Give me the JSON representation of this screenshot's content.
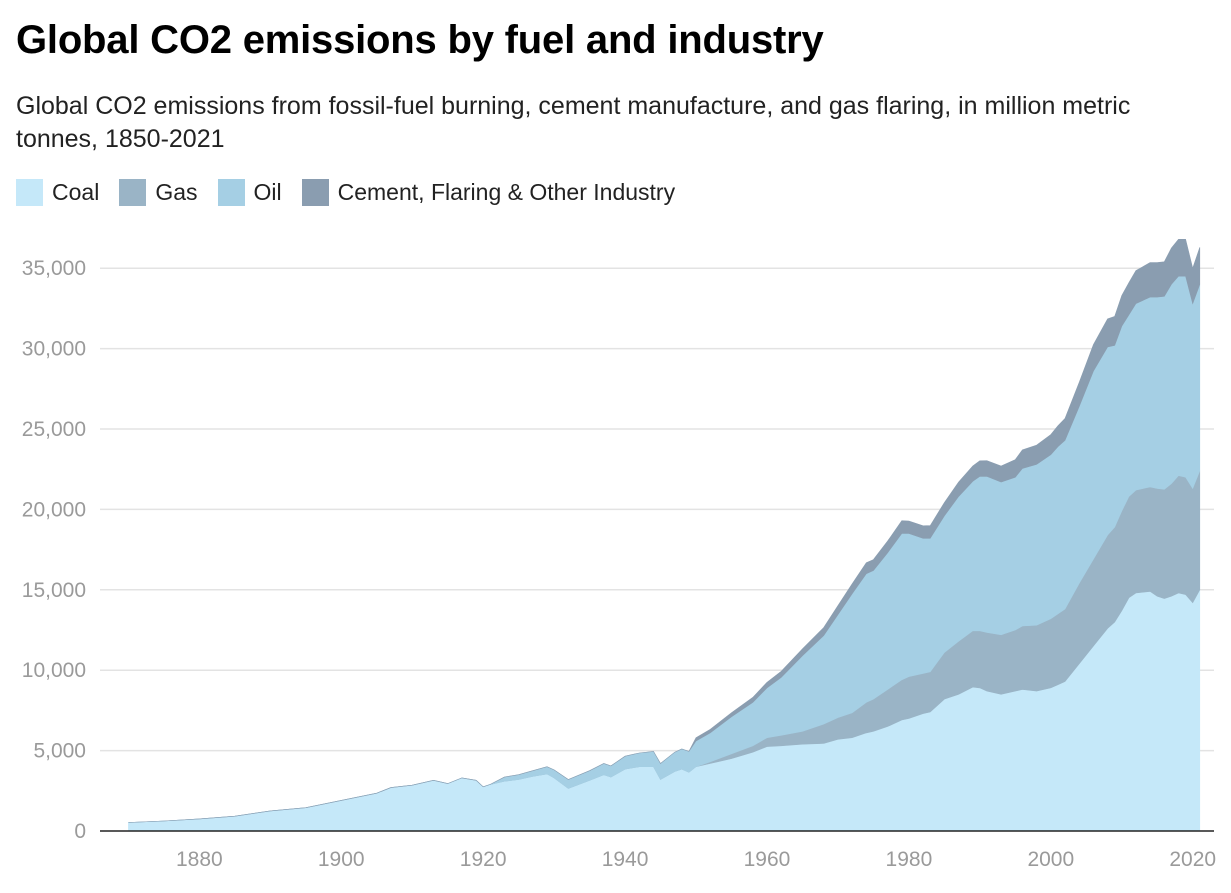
{
  "chart_data": {
    "type": "area",
    "stacked": true,
    "title": "Global CO2 emissions by fuel and industry",
    "subtitle": "Global CO2 emissions from fossil-fuel burning, cement manufacture, and gas flaring, in million metric tonnes, 1850-2021",
    "xlabel": "",
    "ylabel": "",
    "xlim": [
      1866,
      2023
    ],
    "ylim": [
      0,
      37500
    ],
    "x_ticks": [
      "1880",
      "1900",
      "1920",
      "1940",
      "1960",
      "1980",
      "2000",
      "2020"
    ],
    "y_ticks": [
      "0",
      "5,000",
      "10,000",
      "15,000",
      "20,000",
      "25,000",
      "30,000",
      "35,000"
    ],
    "grid": true,
    "legend_position": "top-left",
    "x": [
      1870,
      1875,
      1880,
      1885,
      1890,
      1895,
      1900,
      1905,
      1907,
      1910,
      1913,
      1915,
      1917,
      1919,
      1920,
      1921,
      1923,
      1925,
      1927,
      1929,
      1930,
      1932,
      1935,
      1937,
      1938,
      1940,
      1942,
      1944,
      1945,
      1947,
      1948,
      1949,
      1950,
      1952,
      1955,
      1958,
      1960,
      1962,
      1965,
      1968,
      1970,
      1972,
      1974,
      1975,
      1977,
      1979,
      1980,
      1982,
      1983,
      1985,
      1987,
      1989,
      1990,
      1991,
      1993,
      1995,
      1996,
      1998,
      2000,
      2001,
      2002,
      2004,
      2006,
      2008,
      2009,
      2010,
      2011,
      2012,
      2014,
      2015,
      2016,
      2017,
      2018,
      2019,
      2020,
      2021
    ],
    "series": [
      {
        "name": "Coal",
        "color": "#c5e8f9",
        "values": [
          530,
          620,
          750,
          920,
          1250,
          1450,
          1900,
          2350,
          2700,
          2850,
          3150,
          2950,
          3300,
          3150,
          2750,
          2900,
          3100,
          3200,
          3400,
          3550,
          3300,
          2650,
          3150,
          3500,
          3350,
          3850,
          4000,
          4000,
          3200,
          3700,
          3850,
          3650,
          4000,
          4200,
          4500,
          4900,
          5250,
          5300,
          5400,
          5450,
          5700,
          5800,
          6100,
          6200,
          6500,
          6900,
          7000,
          7300,
          7400,
          8200,
          8500,
          8950,
          8900,
          8700,
          8500,
          8700,
          8800,
          8700,
          8900,
          9100,
          9300,
          10400,
          11500,
          12600,
          13000,
          13700,
          14500,
          14800,
          14900,
          14600,
          14450,
          14600,
          14800,
          14700,
          14200,
          15000
        ]
      },
      {
        "name": "Gas",
        "color": "#9ab4c6",
        "values": [
          0,
          0,
          0,
          0,
          0,
          0,
          0,
          0,
          0,
          0,
          0,
          0,
          0,
          0,
          0,
          0,
          0,
          0,
          0,
          0,
          0,
          0,
          0,
          0,
          0,
          0,
          0,
          0,
          0,
          0,
          0,
          0,
          0,
          100,
          300,
          400,
          550,
          650,
          800,
          1200,
          1350,
          1550,
          1900,
          2000,
          2300,
          2500,
          2600,
          2500,
          2500,
          2900,
          3300,
          3500,
          3550,
          3650,
          3700,
          3800,
          3950,
          4100,
          4300,
          4400,
          4500,
          5000,
          5400,
          5800,
          5900,
          6200,
          6300,
          6400,
          6500,
          6700,
          6800,
          7000,
          7300,
          7300,
          7100,
          7400
        ]
      },
      {
        "name": "Oil",
        "color": "#a5cfe4",
        "values": [
          0,
          0,
          0,
          0,
          0,
          0,
          0,
          0,
          0,
          0,
          0,
          0,
          0,
          0,
          0,
          0,
          250,
          300,
          350,
          450,
          500,
          550,
          600,
          700,
          700,
          800,
          850,
          950,
          1000,
          1200,
          1250,
          1300,
          1600,
          1800,
          2300,
          2700,
          3100,
          3600,
          4700,
          5500,
          6400,
          7400,
          8000,
          8000,
          8500,
          9100,
          8900,
          8400,
          8300,
          8500,
          9000,
          9300,
          9600,
          9700,
          9500,
          9500,
          9800,
          10000,
          10200,
          10400,
          10500,
          11000,
          11700,
          11700,
          11300,
          11500,
          11300,
          11600,
          11800,
          11900,
          12000,
          12400,
          12400,
          12500,
          11500,
          11600
        ]
      },
      {
        "name": "Cement, Flaring & Other Industry",
        "color": "#8a9db0",
        "values": [
          0,
          0,
          0,
          0,
          0,
          0,
          0,
          0,
          0,
          0,
          0,
          0,
          0,
          0,
          0,
          0,
          0,
          0,
          0,
          0,
          0,
          0,
          0,
          0,
          0,
          0,
          0,
          0,
          0,
          0,
          0,
          0,
          200,
          220,
          260,
          310,
          350,
          380,
          430,
          500,
          560,
          620,
          680,
          680,
          730,
          800,
          780,
          780,
          790,
          830,
          900,
          950,
          970,
          980,
          1000,
          1100,
          1150,
          1200,
          1250,
          1300,
          1350,
          1500,
          1650,
          1750,
          1800,
          1900,
          2000,
          2050,
          2150,
          2150,
          2150,
          2250,
          2300,
          2300,
          2200,
          2300
        ]
      }
    ]
  }
}
